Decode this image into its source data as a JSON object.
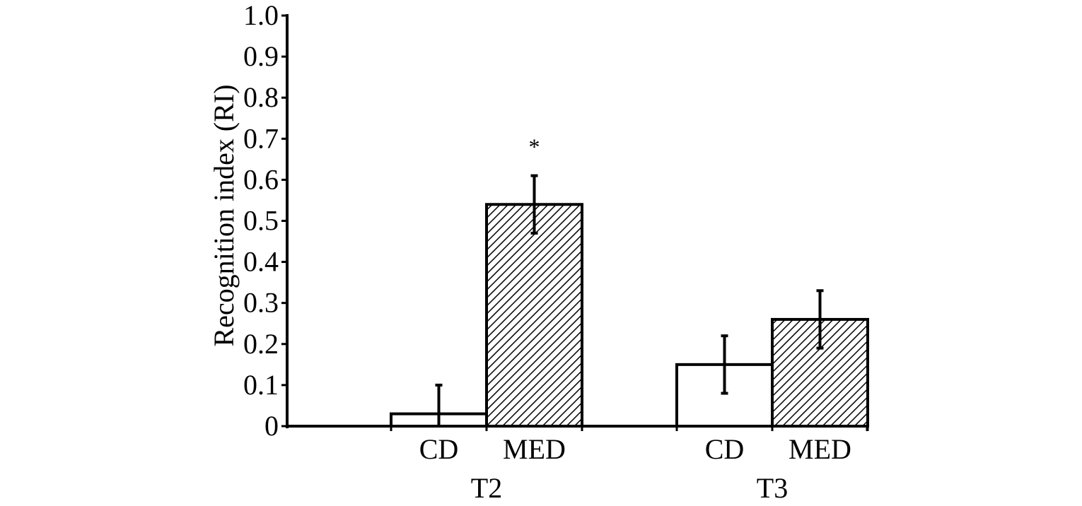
{
  "chart_data": {
    "type": "bar",
    "title": "",
    "xlabel": "",
    "ylabel": "Recognition index (RI)",
    "ylim": [
      0,
      1.0
    ],
    "yticks": [
      "0",
      "0.1",
      "0.2",
      "0.3",
      "0.4",
      "0.5",
      "0.6",
      "0.7",
      "0.8",
      "0.9",
      "1.0"
    ],
    "grid": false,
    "legend": "none",
    "groups": [
      {
        "label": "T2",
        "bars": [
          {
            "label": "CD",
            "value": 0.03,
            "error": 0.07,
            "style": "open",
            "annotation": ""
          },
          {
            "label": "MED",
            "value": 0.54,
            "error": 0.07,
            "style": "hatched",
            "annotation": "*"
          }
        ]
      },
      {
        "label": "T3",
        "bars": [
          {
            "label": "CD",
            "value": 0.15,
            "error": 0.07,
            "style": "open",
            "annotation": ""
          },
          {
            "label": "MED",
            "value": 0.26,
            "error": 0.07,
            "style": "hatched",
            "annotation": ""
          }
        ]
      }
    ]
  }
}
